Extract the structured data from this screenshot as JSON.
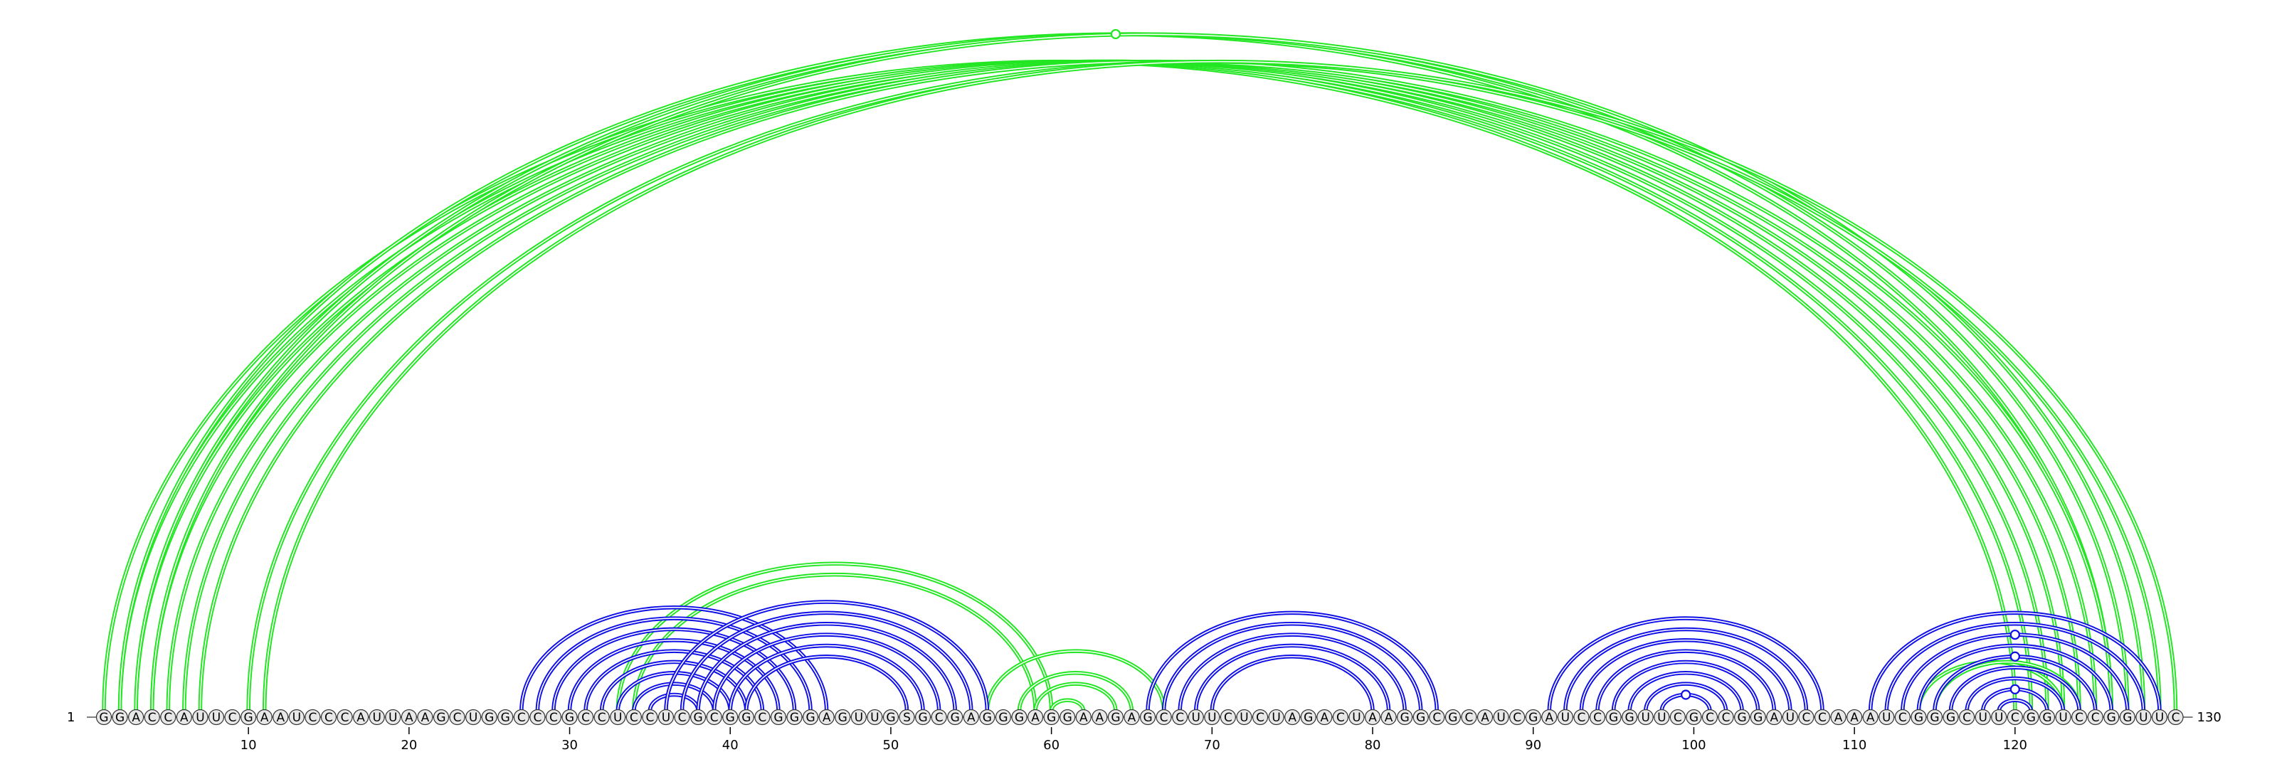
{
  "sequence": "GGACCAUUCGAAUCCCAUUAAGCUGGCCCGCCUCCUCGCGGCGGGAGUUGSGCGAGGGAGGAAGAGCCUUCUCUAGACUAAGGCGCAUCGAUCCGGUUCGCCGGAUCCAAAUCGGGCUUCGGUCCGGUUC",
  "start_label": "1",
  "end_label": "130",
  "ticks": [
    10,
    20,
    30,
    40,
    50,
    60,
    70,
    80,
    90,
    100,
    110,
    120
  ],
  "colors": {
    "long_range": "#22e622",
    "helix": "#1010e6",
    "node_fill": "#e8e8e8",
    "node_stroke": "#333333"
  },
  "arcs": {
    "green_long": [
      [
        1,
        120
      ],
      [
        2,
        121
      ],
      [
        3,
        122
      ],
      [
        4,
        123
      ],
      [
        5,
        124
      ],
      [
        2,
        126
      ],
      [
        3,
        127
      ],
      [
        4,
        128
      ],
      [
        6,
        125
      ],
      [
        7,
        126
      ],
      [
        10,
        129
      ],
      [
        11,
        130
      ]
    ],
    "green_medium": [
      [
        33,
        60
      ],
      [
        34,
        59
      ],
      [
        56,
        67
      ],
      [
        58,
        65
      ],
      [
        59,
        64
      ],
      [
        60,
        62
      ]
    ],
    "green_small": [
      [
        114,
        123
      ],
      [
        115,
        124
      ]
    ],
    "blue_helix_1": [
      [
        27,
        46
      ],
      [
        28,
        45
      ],
      [
        29,
        44
      ],
      [
        30,
        43
      ],
      [
        31,
        42
      ],
      [
        32,
        41
      ],
      [
        33,
        40
      ],
      [
        34,
        39
      ],
      [
        35,
        38
      ],
      [
        36,
        56
      ],
      [
        37,
        55
      ],
      [
        38,
        54
      ],
      [
        39,
        53
      ],
      [
        40,
        52
      ],
      [
        41,
        51
      ]
    ],
    "blue_helix_2": [
      [
        66,
        84
      ],
      [
        67,
        83
      ],
      [
        68,
        82
      ],
      [
        69,
        81
      ],
      [
        70,
        80
      ]
    ],
    "blue_helix_3": [
      [
        91,
        108
      ],
      [
        92,
        107
      ],
      [
        93,
        106
      ],
      [
        94,
        105
      ],
      [
        95,
        104
      ],
      [
        96,
        103
      ],
      [
        97,
        102
      ],
      [
        98,
        101
      ]
    ],
    "blue_helix_4": [
      [
        111,
        129
      ],
      [
        112,
        128
      ],
      [
        113,
        127
      ],
      [
        114,
        126
      ],
      [
        115,
        125
      ],
      [
        116,
        124
      ],
      [
        117,
        123
      ],
      [
        118,
        122
      ],
      [
        119,
        121
      ]
    ]
  },
  "markers": [
    {
      "color": "green",
      "i": 2,
      "j": 126
    },
    {
      "color": "blue",
      "i": 98,
      "j": 101
    },
    {
      "color": "blue",
      "i": 113,
      "j": 127
    },
    {
      "color": "blue",
      "i": 115,
      "j": 125
    },
    {
      "color": "blue",
      "i": 118,
      "j": 122
    }
  ]
}
